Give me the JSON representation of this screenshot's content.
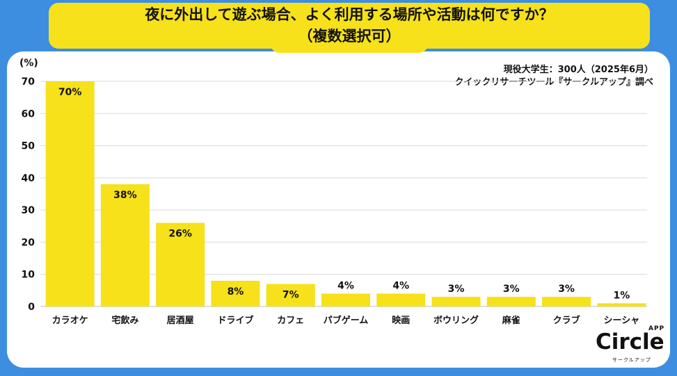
{
  "title": {
    "line1": "夜に外出して遊ぶ場合、よく利用する場所や活動は何ですか？",
    "line2": "（複数選択可）"
  },
  "source": {
    "line1": "現役大学生：300人（2025年6月）",
    "line2": "クイックリサーチツール『サークルアップ』調べ"
  },
  "logo": {
    "main": "Circle",
    "app": "APP",
    "sub": "サークルアップ"
  },
  "colors": {
    "background": "#3d8ee0",
    "bar": "#f6e11a",
    "title_bg": "#f6e11a",
    "grid": "#d9d9d9"
  },
  "chart_data": {
    "type": "bar",
    "ylabel": "(%)",
    "ylim": [
      0,
      70
    ],
    "yticks": [
      0,
      10,
      20,
      30,
      40,
      50,
      60,
      70
    ],
    "grid": true,
    "categories": [
      "カラオケ",
      "宅飲み",
      "居酒屋",
      "ドライブ",
      "カフェ",
      "パブゲーム",
      "映画",
      "ボウリング",
      "麻雀",
      "クラブ",
      "シーシャ"
    ],
    "values": [
      70,
      38,
      26,
      8,
      7,
      4,
      4,
      3,
      3,
      3,
      1
    ],
    "value_labels": [
      "70%",
      "38%",
      "26%",
      "8%",
      "7%",
      "4%",
      "4%",
      "3%",
      "3%",
      "3%",
      "1%"
    ]
  }
}
